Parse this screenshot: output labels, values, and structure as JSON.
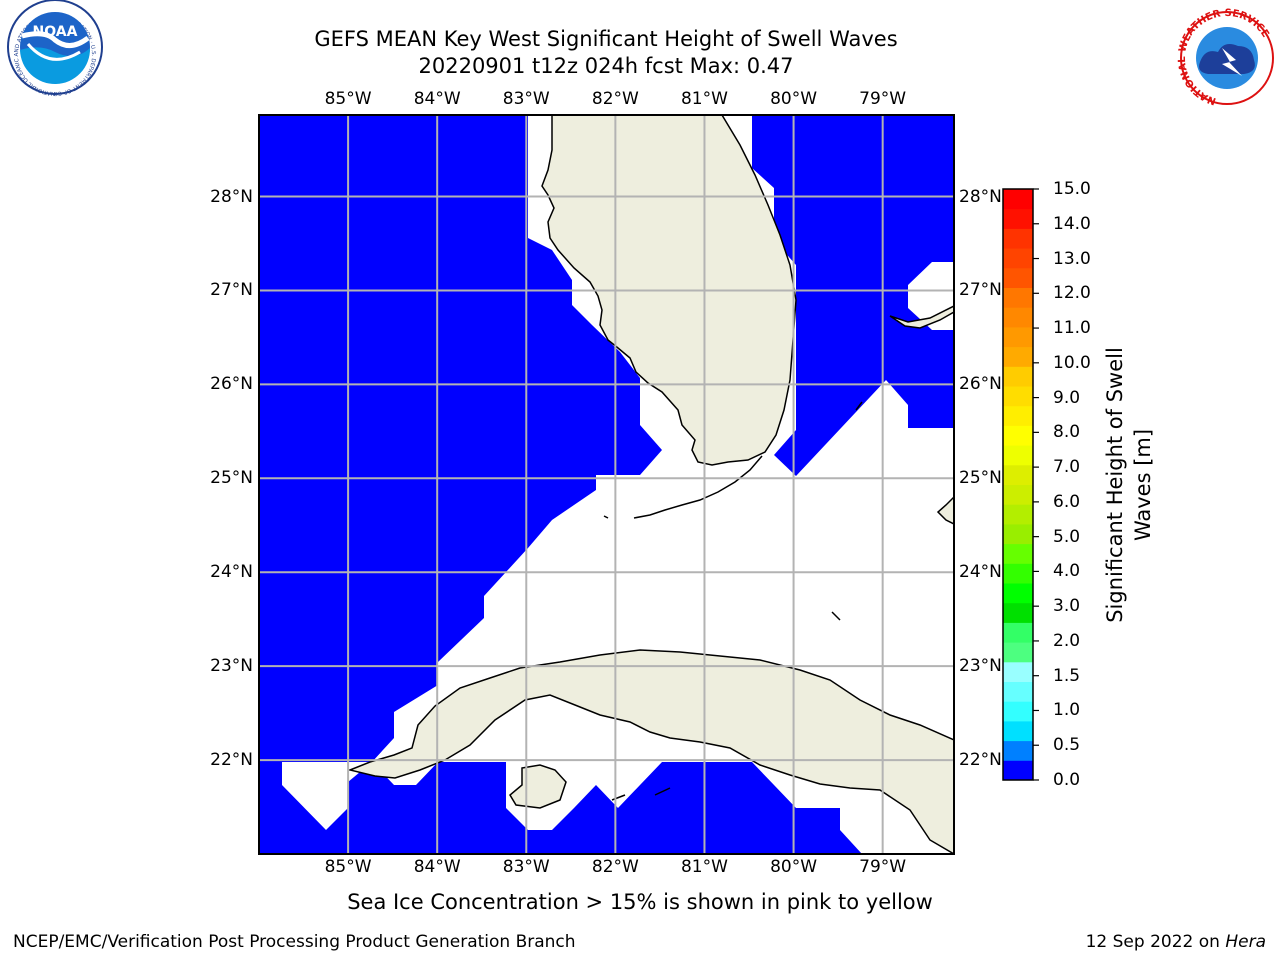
{
  "title": {
    "line1": "GEFS MEAN Key West Significant Height of Swell Waves",
    "line2": "20220901 t12z 024h fcst   Max: 0.47"
  },
  "map": {
    "lon_ticks": [
      "85°W",
      "84°W",
      "83°W",
      "82°W",
      "81°W",
      "80°W",
      "79°W"
    ],
    "lat_ticks": [
      "28°N",
      "27°N",
      "26°N",
      "25°N",
      "24°N",
      "23°N",
      "22°N"
    ],
    "extent": {
      "lon_min": -86.0,
      "lon_max": -78.25,
      "lat_min": 21.0,
      "lat_max": 28.75
    },
    "colors": {
      "sea": "#0000ff",
      "land": "#eeeede",
      "nodata": "#ffffff",
      "grid": "#b3b3b3"
    }
  },
  "colorbar": {
    "label": "Significant Height of Swell Waves [m]",
    "label_lines": [
      "Significant Height of Swell",
      "Waves [m]"
    ],
    "ticks": [
      "0.0",
      "0.5",
      "1.0",
      "1.5",
      "2.0",
      "2.5",
      "3.0",
      "3.5",
      "4.0",
      "4.5",
      "5.0",
      "5.5",
      "6.0",
      "6.5",
      "7.0",
      "7.5",
      "8.0",
      "8.5",
      "9.0",
      "9.5",
      "10.0",
      "10.5",
      "11.0",
      "11.5",
      "12.0",
      "12.5",
      "13.0",
      "13.5",
      "14.0",
      "14.5",
      "15.0"
    ],
    "tick_labels": [
      "0.0",
      "0.5",
      "1.0",
      "1.5",
      "2.0",
      "3.0",
      "4.0",
      "5.0",
      "6.0",
      "7.0",
      "8.0",
      "9.0",
      "10.0",
      "11.0",
      "12.0",
      "13.0",
      "14.0",
      "15.0"
    ],
    "bins": [
      {
        "lo": 0.0,
        "hi": 0.5,
        "color": "#0000ff"
      },
      {
        "lo": 0.5,
        "hi": 1.0,
        "color": "#0080ff"
      },
      {
        "lo": 1.0,
        "hi": 1.5,
        "color": "#00e0ff"
      },
      {
        "lo": 1.5,
        "hi": 2.0,
        "color": "#33ffff"
      },
      {
        "lo": 2.0,
        "hi": 2.5,
        "color": "#66ffff"
      },
      {
        "lo": 2.5,
        "hi": 3.0,
        "color": "#99ffff"
      },
      {
        "lo": 3.0,
        "hi": 3.5,
        "color": "#4dff80"
      },
      {
        "lo": 3.5,
        "hi": 4.0,
        "color": "#33ff66"
      },
      {
        "lo": 4.0,
        "hi": 4.5,
        "color": "#00e000"
      },
      {
        "lo": 4.5,
        "hi": 5.0,
        "color": "#00ff00"
      },
      {
        "lo": 5.0,
        "hi": 5.5,
        "color": "#33ff00"
      },
      {
        "lo": 5.5,
        "hi": 6.0,
        "color": "#66ff00"
      },
      {
        "lo": 6.0,
        "hi": 6.5,
        "color": "#99ee00"
      },
      {
        "lo": 6.5,
        "hi": 7.0,
        "color": "#b3ee00"
      },
      {
        "lo": 7.0,
        "hi": 7.5,
        "color": "#ccee00"
      },
      {
        "lo": 7.5,
        "hi": 8.0,
        "color": "#ddee00"
      },
      {
        "lo": 8.0,
        "hi": 8.5,
        "color": "#eeff00"
      },
      {
        "lo": 8.5,
        "hi": 9.0,
        "color": "#ffff00"
      },
      {
        "lo": 9.0,
        "hi": 9.5,
        "color": "#ffee00"
      },
      {
        "lo": 9.5,
        "hi": 10.0,
        "color": "#ffdd00"
      },
      {
        "lo": 10.0,
        "hi": 10.5,
        "color": "#ffcc00"
      },
      {
        "lo": 10.5,
        "hi": 11.0,
        "color": "#ffaa00"
      },
      {
        "lo": 11.0,
        "hi": 11.5,
        "color": "#ff9900"
      },
      {
        "lo": 11.5,
        "hi": 12.0,
        "color": "#ff8800"
      },
      {
        "lo": 12.0,
        "hi": 12.5,
        "color": "#ff7700"
      },
      {
        "lo": 12.5,
        "hi": 13.0,
        "color": "#ff5500"
      },
      {
        "lo": 13.0,
        "hi": 13.5,
        "color": "#ff4400"
      },
      {
        "lo": 13.5,
        "hi": 14.0,
        "color": "#ff3300"
      },
      {
        "lo": 14.0,
        "hi": 14.5,
        "color": "#ff1100"
      },
      {
        "lo": 14.5,
        "hi": 15.0,
        "color": "#ff0000"
      }
    ]
  },
  "note": "Sea Ice Concentration > 15% is shown in pink to yellow",
  "footer": {
    "left": "NCEP/EMC/Verification Post Processing Product Generation Branch",
    "right_prefix": "12 Sep 2022 on ",
    "right_host": "Hera"
  },
  "logos": {
    "noaa": {
      "text": "NOAA",
      "ring_text": "NATIONAL OCEANIC AND ATMOSPHERIC ADMINISTRATION · U.S. DEPARTMENT OF COMMERCE"
    },
    "nws": {
      "ring_text": "NATIONAL WEATHER SERVICE"
    }
  }
}
